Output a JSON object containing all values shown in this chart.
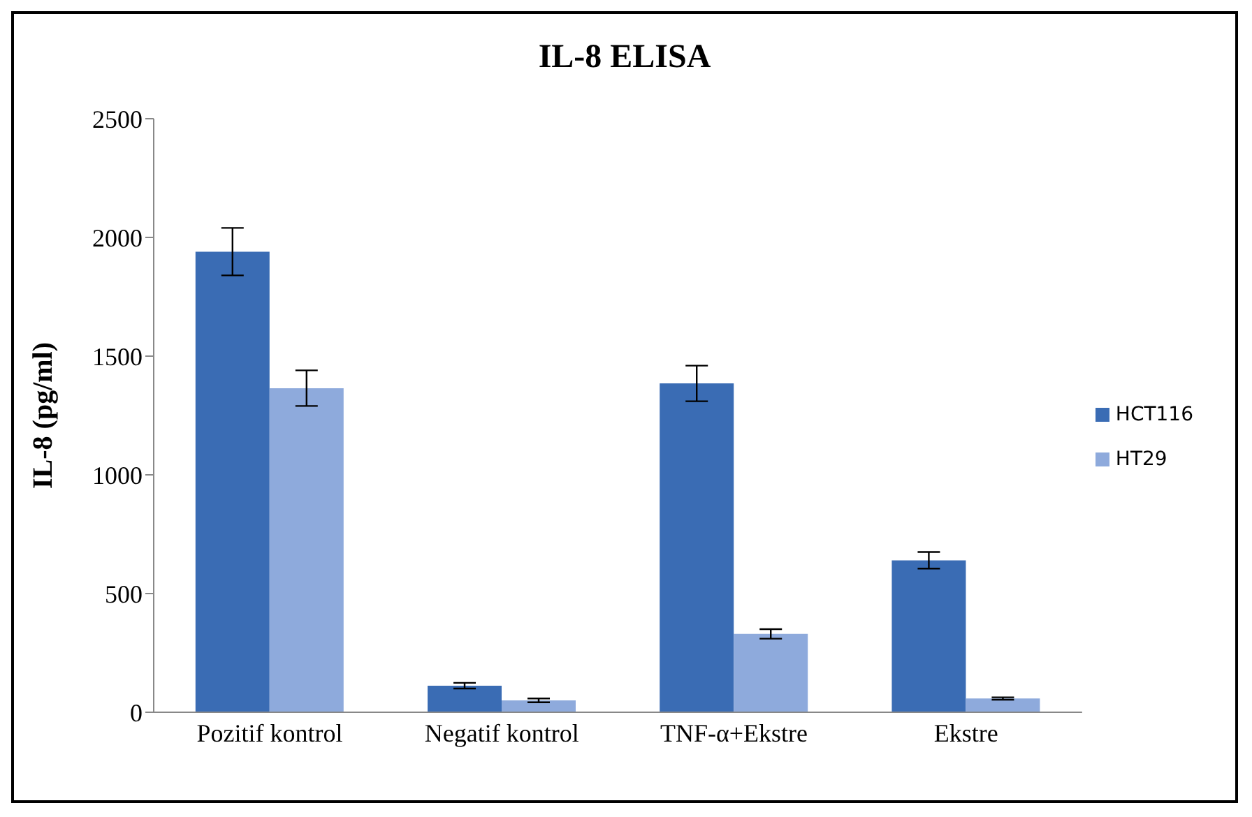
{
  "chart_data": {
    "type": "bar",
    "title": "IL-8 ELISA",
    "ylabel": "IL-8 (pg/ml)",
    "categories": [
      "Pozitif kontrol",
      "Negatif kontrol",
      "TNF-α+Ekstre",
      "Ekstre"
    ],
    "series": [
      {
        "name": "HCT116",
        "color": "#3a6cb4",
        "values": [
          1940,
          112,
          1385,
          640
        ],
        "errors": [
          100,
          12,
          75,
          35
        ]
      },
      {
        "name": "HT29",
        "color": "#8eaadc",
        "values": [
          1365,
          50,
          330,
          58
        ],
        "errors": [
          75,
          8,
          20,
          5
        ]
      }
    ],
    "ylim": [
      0,
      2500
    ],
    "yticks": [
      0,
      500,
      1000,
      1500,
      2000,
      2500
    ],
    "grid": false,
    "legend": "right"
  }
}
